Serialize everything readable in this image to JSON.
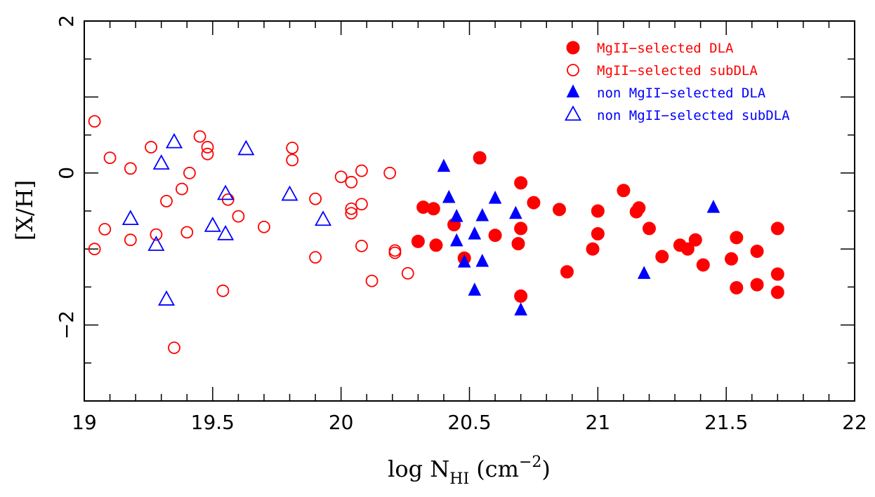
{
  "chart_data": {
    "type": "scatter",
    "xlabel": {
      "main": "log N",
      "sub": "HI",
      "unit": "(cm",
      "sup": "−2",
      "close": ")"
    },
    "ylabel": "[X/H]",
    "xlim": [
      19,
      22
    ],
    "ylim": [
      -3,
      2
    ],
    "x_ticks": [
      19,
      19.5,
      20,
      20.5,
      21,
      21.5,
      22
    ],
    "x_tick_labels": [
      "19",
      "19.5",
      "20",
      "20.5",
      "21",
      "21.5",
      "22"
    ],
    "y_ticks": [
      -2,
      0,
      2
    ],
    "y_tick_labels": [
      "−2",
      "0",
      "2"
    ],
    "grid": false,
    "legend_position": "top-right",
    "series": [
      {
        "name": "MgII−selected DLA",
        "marker": "circle-filled",
        "color": "#ff0000",
        "points": [
          [
            20.3,
            -0.9
          ],
          [
            20.32,
            -0.45
          ],
          [
            20.36,
            -0.47
          ],
          [
            20.37,
            -0.95
          ],
          [
            20.44,
            -0.68
          ],
          [
            20.48,
            -1.12
          ],
          [
            20.54,
            0.2
          ],
          [
            20.6,
            -0.82
          ],
          [
            20.69,
            -0.93
          ],
          [
            20.7,
            -0.13
          ],
          [
            20.7,
            -0.73
          ],
          [
            20.7,
            -1.62
          ],
          [
            20.75,
            -0.39
          ],
          [
            20.85,
            -0.48
          ],
          [
            20.88,
            -1.3
          ],
          [
            20.98,
            -1.0
          ],
          [
            21.0,
            -0.5
          ],
          [
            21.0,
            -0.8
          ],
          [
            21.1,
            -0.23
          ],
          [
            21.15,
            -0.51
          ],
          [
            21.16,
            -0.46
          ],
          [
            21.2,
            -0.73
          ],
          [
            21.25,
            -1.1
          ],
          [
            21.32,
            -0.95
          ],
          [
            21.35,
            -1.0
          ],
          [
            21.38,
            -0.88
          ],
          [
            21.41,
            -1.21
          ],
          [
            21.52,
            -1.13
          ],
          [
            21.54,
            -0.85
          ],
          [
            21.54,
            -1.51
          ],
          [
            21.62,
            -1.03
          ],
          [
            21.62,
            -1.47
          ],
          [
            21.7,
            -0.73
          ],
          [
            21.7,
            -1.33
          ],
          [
            21.7,
            -1.57
          ]
        ]
      },
      {
        "name": "MgII−selected subDLA",
        "marker": "circle-open",
        "color": "#ff0000",
        "points": [
          [
            19.04,
            0.68
          ],
          [
            19.04,
            -1.0
          ],
          [
            19.08,
            -0.74
          ],
          [
            19.1,
            0.2
          ],
          [
            19.18,
            0.06
          ],
          [
            19.18,
            -0.88
          ],
          [
            19.26,
            0.34
          ],
          [
            19.28,
            -0.81
          ],
          [
            19.32,
            -0.37
          ],
          [
            19.35,
            -2.3
          ],
          [
            19.38,
            -0.21
          ],
          [
            19.4,
            -0.78
          ],
          [
            19.41,
            0.0
          ],
          [
            19.45,
            0.48
          ],
          [
            19.48,
            0.34
          ],
          [
            19.48,
            0.25
          ],
          [
            19.54,
            -1.55
          ],
          [
            19.56,
            -0.35
          ],
          [
            19.6,
            -0.57
          ],
          [
            19.7,
            -0.71
          ],
          [
            19.81,
            0.33
          ],
          [
            19.81,
            0.17
          ],
          [
            19.9,
            -0.34
          ],
          [
            19.9,
            -1.11
          ],
          [
            20.0,
            -0.05
          ],
          [
            20.04,
            -0.12
          ],
          [
            20.04,
            -0.47
          ],
          [
            20.04,
            -0.53
          ],
          [
            20.08,
            0.03
          ],
          [
            20.08,
            -0.41
          ],
          [
            20.08,
            -0.96
          ],
          [
            20.12,
            -1.42
          ],
          [
            20.19,
            0.0
          ],
          [
            20.21,
            -1.02
          ],
          [
            20.21,
            -1.05
          ],
          [
            20.26,
            -1.32
          ]
        ]
      },
      {
        "name": "non MgII−selected DLA",
        "marker": "triangle-filled",
        "color": "#0000ff",
        "points": [
          [
            20.4,
            0.08
          ],
          [
            20.42,
            -0.33
          ],
          [
            20.45,
            -0.58
          ],
          [
            20.45,
            -0.9
          ],
          [
            20.48,
            -1.18
          ],
          [
            20.52,
            -1.55
          ],
          [
            20.52,
            -0.81
          ],
          [
            20.55,
            -0.57
          ],
          [
            20.55,
            -1.17
          ],
          [
            20.6,
            -0.34
          ],
          [
            20.68,
            -0.54
          ],
          [
            20.7,
            -1.81
          ],
          [
            21.18,
            -1.33
          ],
          [
            21.45,
            -0.46
          ]
        ]
      },
      {
        "name": "non MgII−selected subDLA",
        "marker": "triangle-open",
        "color": "#0000ff",
        "points": [
          [
            19.18,
            -0.61
          ],
          [
            19.28,
            -0.95
          ],
          [
            19.3,
            0.12
          ],
          [
            19.32,
            -1.67
          ],
          [
            19.35,
            0.4
          ],
          [
            19.5,
            -0.7
          ],
          [
            19.55,
            -0.28
          ],
          [
            19.55,
            -0.81
          ],
          [
            19.63,
            0.31
          ],
          [
            19.8,
            -0.29
          ],
          [
            19.93,
            -0.62
          ]
        ]
      }
    ]
  }
}
